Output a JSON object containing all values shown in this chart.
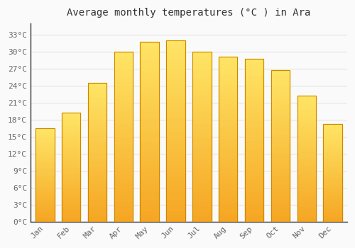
{
  "title": "Average monthly temperatures (°C ) in Ara",
  "months": [
    "Jan",
    "Feb",
    "Mar",
    "Apr",
    "May",
    "Jun",
    "Jul",
    "Aug",
    "Sep",
    "Oct",
    "Nov",
    "Dec"
  ],
  "values": [
    16.5,
    19.2,
    24.5,
    30.0,
    31.8,
    32.0,
    30.0,
    29.2,
    28.8,
    26.8,
    22.2,
    17.2
  ],
  "bar_color_bottom": "#F5A623",
  "bar_color_top": "#FFE566",
  "bar_edge_color": "#CC8800",
  "background_color": "#FAFAFA",
  "plot_bg_color": "#FAFAFA",
  "grid_color": "#E0E0E0",
  "yticks": [
    0,
    3,
    6,
    9,
    12,
    15,
    18,
    21,
    24,
    27,
    30,
    33
  ],
  "ylim": [
    0,
    35
  ],
  "title_fontsize": 10,
  "tick_fontsize": 8,
  "font_family": "monospace"
}
